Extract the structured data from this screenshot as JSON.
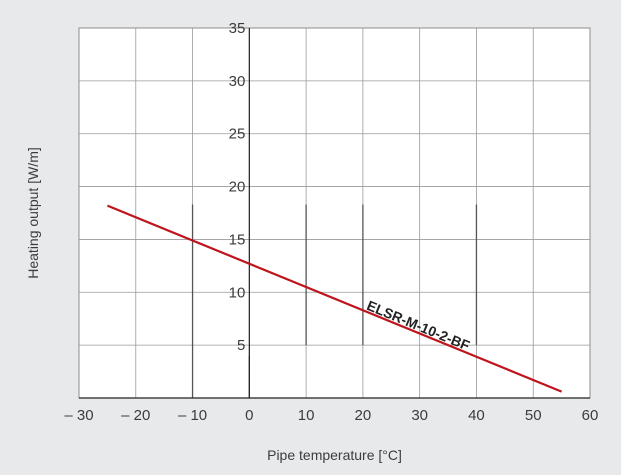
{
  "chart_data": {
    "type": "line",
    "xlabel": "Pipe temperature [°C]",
    "ylabel": "Heating output [W/m]",
    "xlim": [
      -30,
      60
    ],
    "ylim": [
      0,
      35
    ],
    "x_ticks": [
      -30,
      -20,
      -10,
      0,
      10,
      20,
      30,
      40,
      50,
      60
    ],
    "x_tick_labels": [
      "– 30",
      "– 20",
      "– 10",
      "0",
      "10",
      "20",
      "30",
      "40",
      "50",
      "60"
    ],
    "y_ticks": [
      5,
      10,
      15,
      20,
      25,
      30,
      35
    ],
    "y_tick_labels": [
      "5",
      "10",
      "15",
      "20",
      "25",
      "30",
      "35"
    ],
    "grid": true,
    "series": [
      {
        "name": "ELSR-M-10-2-BF",
        "color": "#c0141c",
        "x": [
          -25,
          55
        ],
        "y": [
          18.2,
          0.6
        ]
      }
    ],
    "reference_lines": [
      {
        "x": -10,
        "y": [
          0,
          18.3
        ]
      },
      {
        "x": 0,
        "y": [
          0,
          4.0
        ]
      },
      {
        "x": 10,
        "y": [
          5.0,
          18.3
        ]
      },
      {
        "x": 20,
        "y": [
          5.0,
          18.3
        ]
      },
      {
        "x": 40,
        "y": [
          5.0,
          18.3
        ]
      }
    ]
  }
}
